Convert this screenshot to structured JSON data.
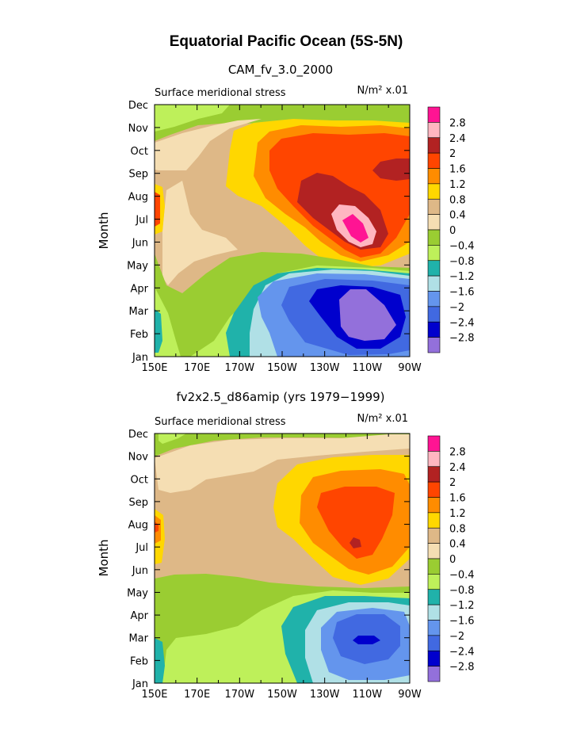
{
  "title": "Equatorial Pacific Ocean (5S-5N)",
  "colorbar": {
    "levels": [
      "2.8",
      "2.4",
      "2",
      "1.6",
      "1.2",
      "0.8",
      "0.4",
      "0",
      "-0.4",
      "-0.8",
      "-1.2",
      "-1.6",
      "-2",
      "-2.4",
      "-2.8"
    ],
    "colors": [
      "#ff1493",
      "#ffb6c1",
      "#b22222",
      "#ff4500",
      "#ff8c00",
      "#ffd700",
      "#deb887",
      "#f5deb3",
      "#9acd32",
      "#bef05a",
      "#20b2aa",
      "#b0e0e6",
      "#6495ed",
      "#4169e1",
      "#0000cd",
      "#9370db"
    ]
  },
  "chart_data": [
    {
      "type": "heatmap",
      "subtitle": "CAM_fv_3.0_2000",
      "left_label": "Surface meridional stress",
      "right_label": "N/m² x.01",
      "ylabel": "Month",
      "xlabel": "",
      "x_ticks": [
        "150E",
        "170E",
        "170W",
        "150W",
        "130W",
        "110W",
        "90W"
      ],
      "x_range": [
        150,
        270
      ],
      "y_ticks": [
        "Jan",
        "Feb",
        "Mar",
        "Apr",
        "May",
        "Jun",
        "Jul",
        "Aug",
        "Sep",
        "Oct",
        "Nov",
        "Dec"
      ],
      "y_range": [
        1,
        12
      ],
      "field_summary": "level index per (lon, month); 7=0, higher=positive",
      "x": [
        150,
        170,
        190,
        210,
        230,
        250,
        270
      ],
      "y": [
        1,
        2,
        3,
        4,
        5,
        6,
        7,
        8,
        9,
        10,
        11,
        12
      ],
      "z": [
        [
          9,
          9,
          9,
          11,
          12,
          13,
          11
        ],
        [
          10,
          9,
          9,
          11,
          13,
          15,
          13
        ],
        [
          10,
          9,
          10,
          12,
          14,
          15,
          13
        ],
        [
          9,
          9,
          9,
          11,
          13,
          13,
          12
        ],
        [
          8,
          8,
          8,
          9,
          10,
          10,
          9
        ],
        [
          7,
          7,
          7,
          7,
          5,
          1,
          6
        ],
        [
          3,
          7,
          6,
          4,
          2,
          3,
          5
        ],
        [
          4,
          7,
          6,
          4,
          3,
          3,
          4
        ],
        [
          6,
          7,
          6,
          4,
          3,
          2,
          2
        ],
        [
          7,
          6,
          5,
          4,
          3,
          3,
          3
        ],
        [
          8,
          7,
          6,
          5,
          6,
          7,
          8
        ],
        [
          8,
          8,
          7,
          7,
          8,
          8,
          8
        ]
      ]
    },
    {
      "type": "heatmap",
      "subtitle": "fv2x2.5_d86amip (yrs 1979−1999)",
      "left_label": "Surface meridional stress",
      "right_label": "N/m² x.01",
      "ylabel": "Month",
      "xlabel": "",
      "x_ticks": [
        "150E",
        "170E",
        "170W",
        "150W",
        "130W",
        "110W",
        "90W"
      ],
      "x_range": [
        150,
        270
      ],
      "y_ticks": [
        "Jan",
        "Feb",
        "Mar",
        "Apr",
        "May",
        "Jun",
        "Jul",
        "Aug",
        "Sep",
        "Oct",
        "Nov",
        "Dec"
      ],
      "y_range": [
        1,
        12
      ],
      "x": [
        150,
        170,
        190,
        210,
        230,
        250,
        270
      ],
      "y": [
        1,
        2,
        3,
        4,
        5,
        6,
        7,
        8,
        9,
        10,
        11,
        12
      ],
      "z": [
        [
          10,
          9,
          9,
          10,
          11,
          11,
          10
        ],
        [
          10,
          9,
          9,
          10,
          12,
          13,
          11
        ],
        [
          9,
          9,
          9,
          10,
          12,
          14,
          12
        ],
        [
          9,
          8,
          9,
          10,
          11,
          12,
          10
        ],
        [
          8,
          8,
          8,
          9,
          9,
          9,
          9
        ],
        [
          6,
          6,
          7,
          7,
          7,
          8,
          8
        ],
        [
          5,
          6,
          6,
          5,
          4,
          3,
          5
        ],
        [
          4,
          6,
          6,
          5,
          4,
          3,
          4
        ],
        [
          6,
          6,
          6,
          5,
          4,
          3,
          4
        ],
        [
          7,
          7,
          6,
          6,
          5,
          5,
          6
        ],
        [
          8,
          7,
          7,
          7,
          6,
          6,
          7
        ],
        [
          8,
          8,
          7,
          7,
          7,
          8,
          8
        ]
      ]
    }
  ]
}
